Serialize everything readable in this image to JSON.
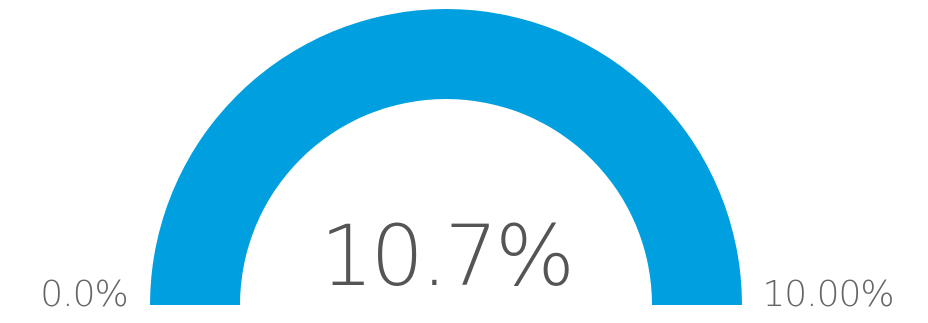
{
  "chart_data": {
    "type": "gauge",
    "value": 10.7,
    "value_label": "10.7%",
    "min": 0.0,
    "max": 10.0,
    "min_label": "0.0%",
    "max_label": "10.00%",
    "colors": {
      "fill": "#009FDF",
      "text": "#555555",
      "background": "#ffffff"
    }
  }
}
